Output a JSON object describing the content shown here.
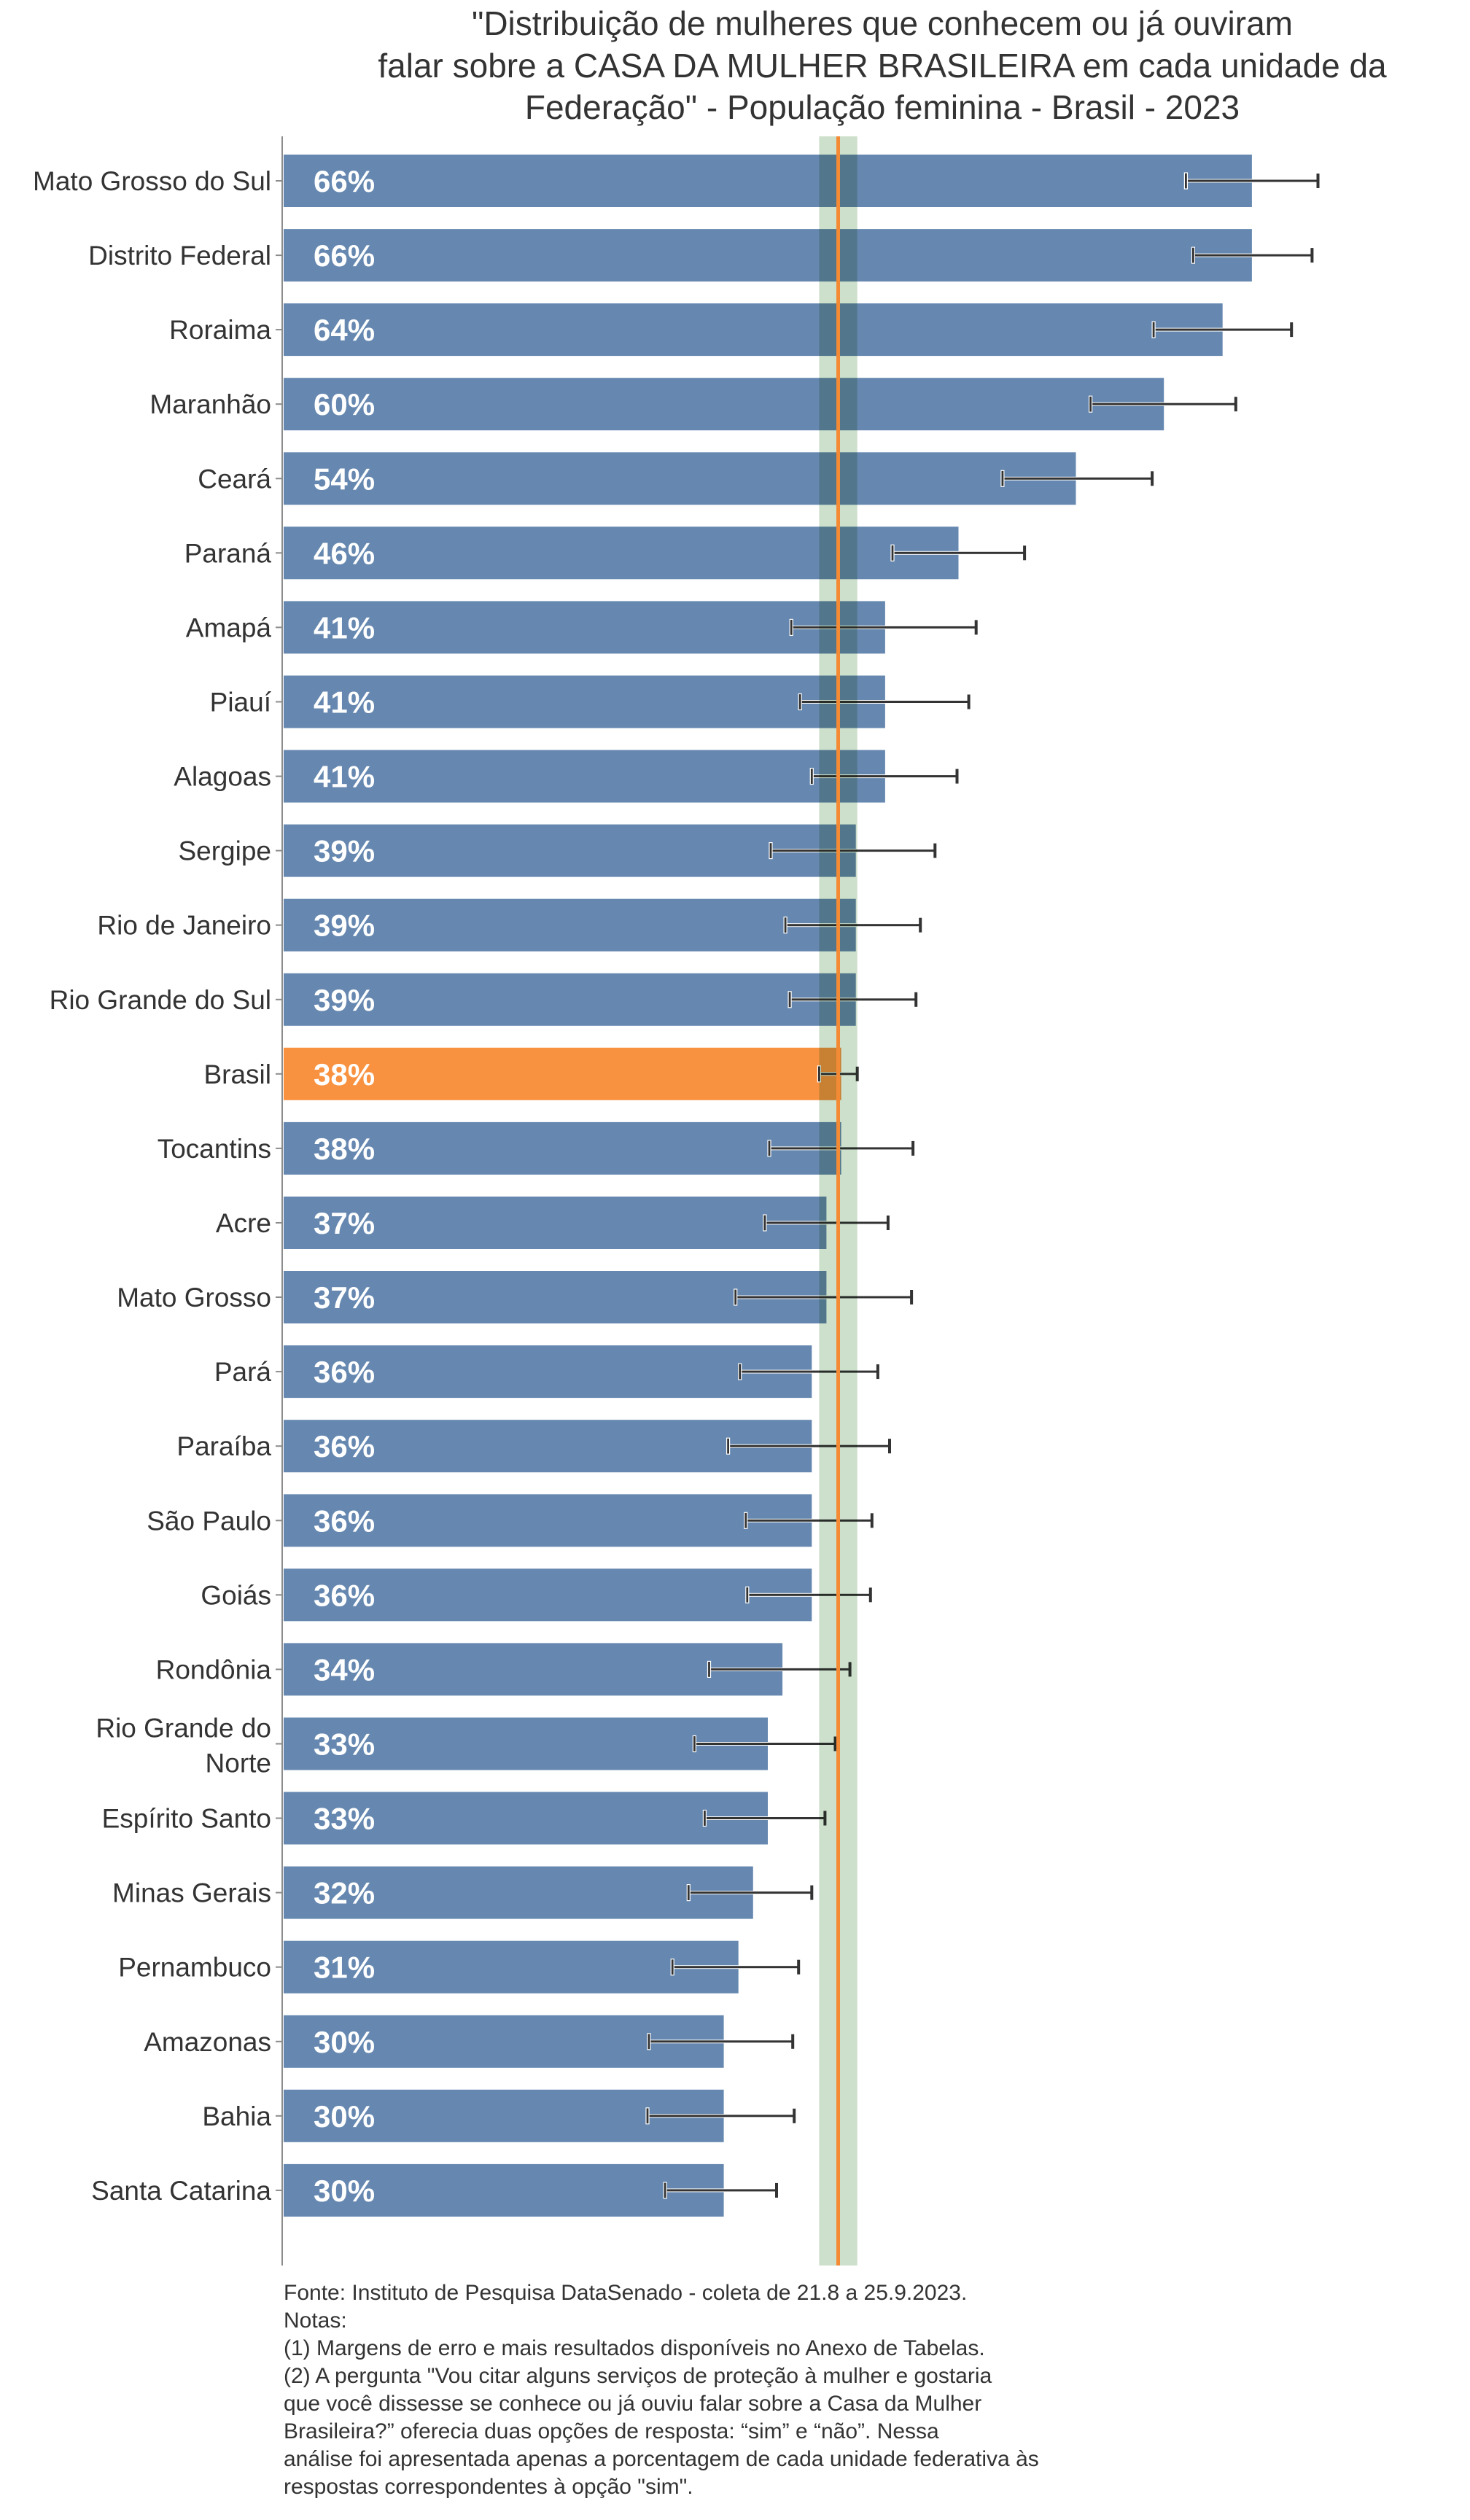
{
  "chart_data": {
    "type": "bar",
    "orientation": "horizontal",
    "title_lines": [
      "\"Distribuição de mulheres que conhecem ou já ouviram",
      "falar sobre a CASA DA MULHER BRASILEIRA em cada unidade da",
      "Federação\" - População feminina - Brasil - 2023"
    ],
    "xlabel": "",
    "ylabel": "",
    "xlim": [
      0,
      80
    ],
    "grid": false,
    "categories": [
      "Mato Grosso do Sul",
      "Distrito Federal",
      "Roraima",
      "Maranhão",
      "Ceará",
      "Paraná",
      "Amapá",
      "Piauí",
      "Alagoas",
      "Sergipe",
      "Rio de Janeiro",
      "Rio Grande do Sul",
      "Brasil",
      "Tocantins",
      "Acre",
      "Mato Grosso",
      "Pará",
      "Paraíba",
      "São Paulo",
      "Goiás",
      "Rondônia",
      "Rio Grande do Norte",
      "Espírito Santo",
      "Minas Gerais",
      "Pernambuco",
      "Amazonas",
      "Bahia",
      "Santa Catarina"
    ],
    "values": [
      66,
      66,
      64,
      60,
      54,
      46,
      41,
      41,
      41,
      39,
      39,
      39,
      38,
      38,
      37,
      37,
      36,
      36,
      36,
      36,
      34,
      33,
      33,
      32,
      31,
      30,
      30,
      30
    ],
    "value_labels": [
      "66%",
      "66%",
      "64%",
      "60%",
      "54%",
      "46%",
      "41%",
      "41%",
      "41%",
      "39%",
      "39%",
      "39%",
      "38%",
      "38%",
      "37%",
      "37%",
      "36%",
      "36%",
      "36%",
      "36%",
      "34%",
      "33%",
      "33%",
      "32%",
      "31%",
      "30%",
      "30%",
      "30%"
    ],
    "error_low": [
      61.5,
      62.0,
      59.3,
      55.0,
      49.0,
      41.5,
      34.6,
      35.2,
      36.0,
      33.2,
      34.2,
      34.5,
      36.5,
      33.1,
      32.8,
      30.8,
      31.1,
      30.3,
      31.5,
      31.6,
      29.0,
      28.0,
      28.7,
      27.6,
      26.5,
      24.9,
      24.8,
      26.0
    ],
    "error_high": [
      70.5,
      70.1,
      68.7,
      64.9,
      59.2,
      50.5,
      47.2,
      46.7,
      45.9,
      44.4,
      43.4,
      43.1,
      39.1,
      42.9,
      41.2,
      42.8,
      40.5,
      41.3,
      40.1,
      40.0,
      38.6,
      37.6,
      36.9,
      36.0,
      35.1,
      34.7,
      34.8,
      33.6
    ],
    "highlight_category": "Brasil",
    "reference_line": {
      "category": "Brasil",
      "value": 37.8,
      "band": [
        36.5,
        39.1
      ]
    },
    "colors": {
      "bar": "#6688B0",
      "highlight_bar": "#F99240",
      "reference_line": "#F58A35",
      "band": "#CDE0CC",
      "error_bar": "#333333",
      "axis": "#8C8C8C",
      "text": "#333333"
    }
  },
  "footer": {
    "lines": [
      "Fonte: Instituto de Pesquisa DataSenado - coleta de 21.8 a 25.9.2023.",
      "Notas:",
      "(1) Margens de erro e mais resultados disponíveis no Anexo de Tabelas.",
      "(2) A pergunta \"Vou citar alguns serviços de proteção à mulher e gostaria",
      "que você dissesse se conhece ou já ouviu falar sobre a Casa da Mulher",
      "Brasileira?” oferecia duas opções de resposta: “sim” e “não”. Nessa",
      "análise foi apresentada apenas a porcentagem de cada unidade federativa às",
      "respostas correspondentes à opção \"sim\"."
    ]
  }
}
